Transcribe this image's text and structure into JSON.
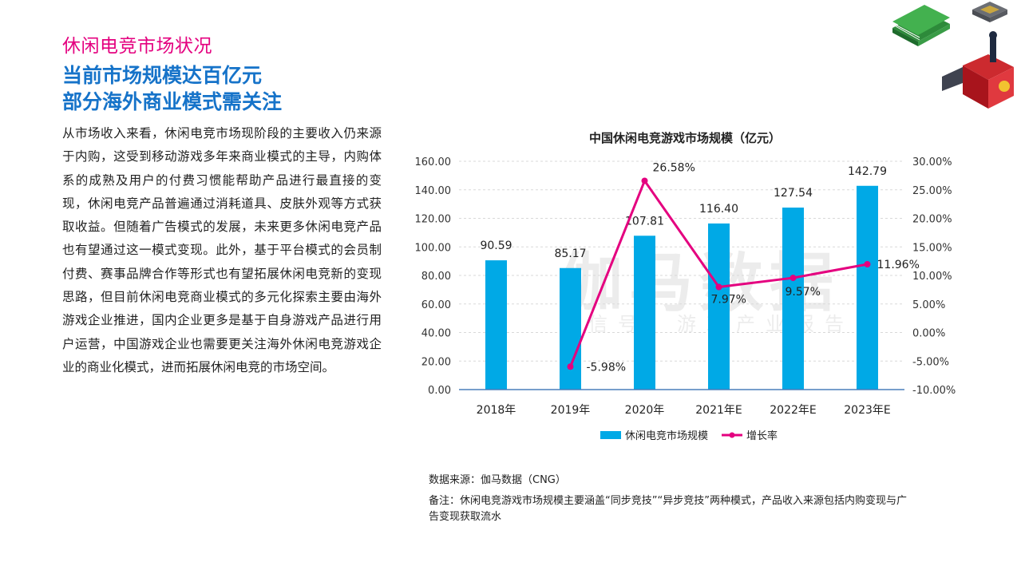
{
  "page": {
    "section_tag": "休闲电竞市场状况",
    "headline_line1": "当前市场规模达百亿元",
    "headline_line2": "部分海外商业模式需关注",
    "body": "从市场收入来看，休闲电竞市场现阶段的主要收入仍来源于内购，这受到移动游戏多年来商业模式的主导，内购体系的成熟及用户的付费习惯能帮助产品进行最直接的变现，休闲电竞产品普遍通过消耗道具、皮肤外观等方式获取收益。但随着广告模式的发展，未来更多休闲电竞产品也有望通过这一模式变现。此外，基于平台模式的会员制付费、赛事品牌合作等形式也有望拓展休闲电竞新的变现思路，但目前休闲电竞商业模式的多元化探索主要由海外游戏企业推进，国内企业更多是基于自身游戏产品进行用户运营，中国游戏企业也需要更关注海外休闲电竞游戏企业的商业化模式，进而拓展休闲电竞的市场空间。",
    "source": "数据来源：伽马数据（CNG）",
    "remark": "备注：休闲电竞游戏市场规模主要涵盖“同步竞技”“异步竞技”两种模式，产品收入来源包括内购变现与广告变现获取流水",
    "watermark_main": "伽马数据",
    "watermark_sub": "微信号：游戏产业报告"
  },
  "chart_data": {
    "type": "bar",
    "title": "中国休闲电竞游戏市场规模（亿元）",
    "categories": [
      "2018年",
      "2019年",
      "2020年",
      "2021年E",
      "2022年E",
      "2023年E"
    ],
    "series": [
      {
        "name": "休闲电竞市场规模",
        "kind": "bar",
        "axis": "left",
        "values": [
          90.59,
          85.17,
          107.81,
          116.4,
          127.54,
          142.79
        ],
        "labels": [
          "90.59",
          "85.17",
          "107.81",
          "116.40",
          "127.54",
          "142.79"
        ]
      },
      {
        "name": "增长率",
        "kind": "line",
        "axis": "right",
        "values": [
          null,
          -5.98,
          26.58,
          7.97,
          9.57,
          11.96
        ],
        "labels": [
          "",
          "-5.98%",
          "26.58%",
          "7.97%",
          "9.57%",
          "11.96%"
        ]
      }
    ],
    "y_left": {
      "ylim": [
        0,
        160
      ],
      "ticks": [
        "0.00",
        "20.00",
        "40.00",
        "60.00",
        "80.00",
        "100.00",
        "120.00",
        "140.00",
        "160.00"
      ]
    },
    "y_right": {
      "ylim": [
        -10,
        30
      ],
      "ticks": [
        "-10.00%",
        "-5.00%",
        "0.00%",
        "5.00%",
        "10.00%",
        "15.00%",
        "20.00%",
        "25.00%",
        "30.00%"
      ]
    },
    "grid": true,
    "legend": "bottom",
    "colors": {
      "bar": "#00a9e6",
      "line": "#e4007f",
      "grid": "#d9d9d9",
      "axis": "#4a7ebb"
    }
  }
}
